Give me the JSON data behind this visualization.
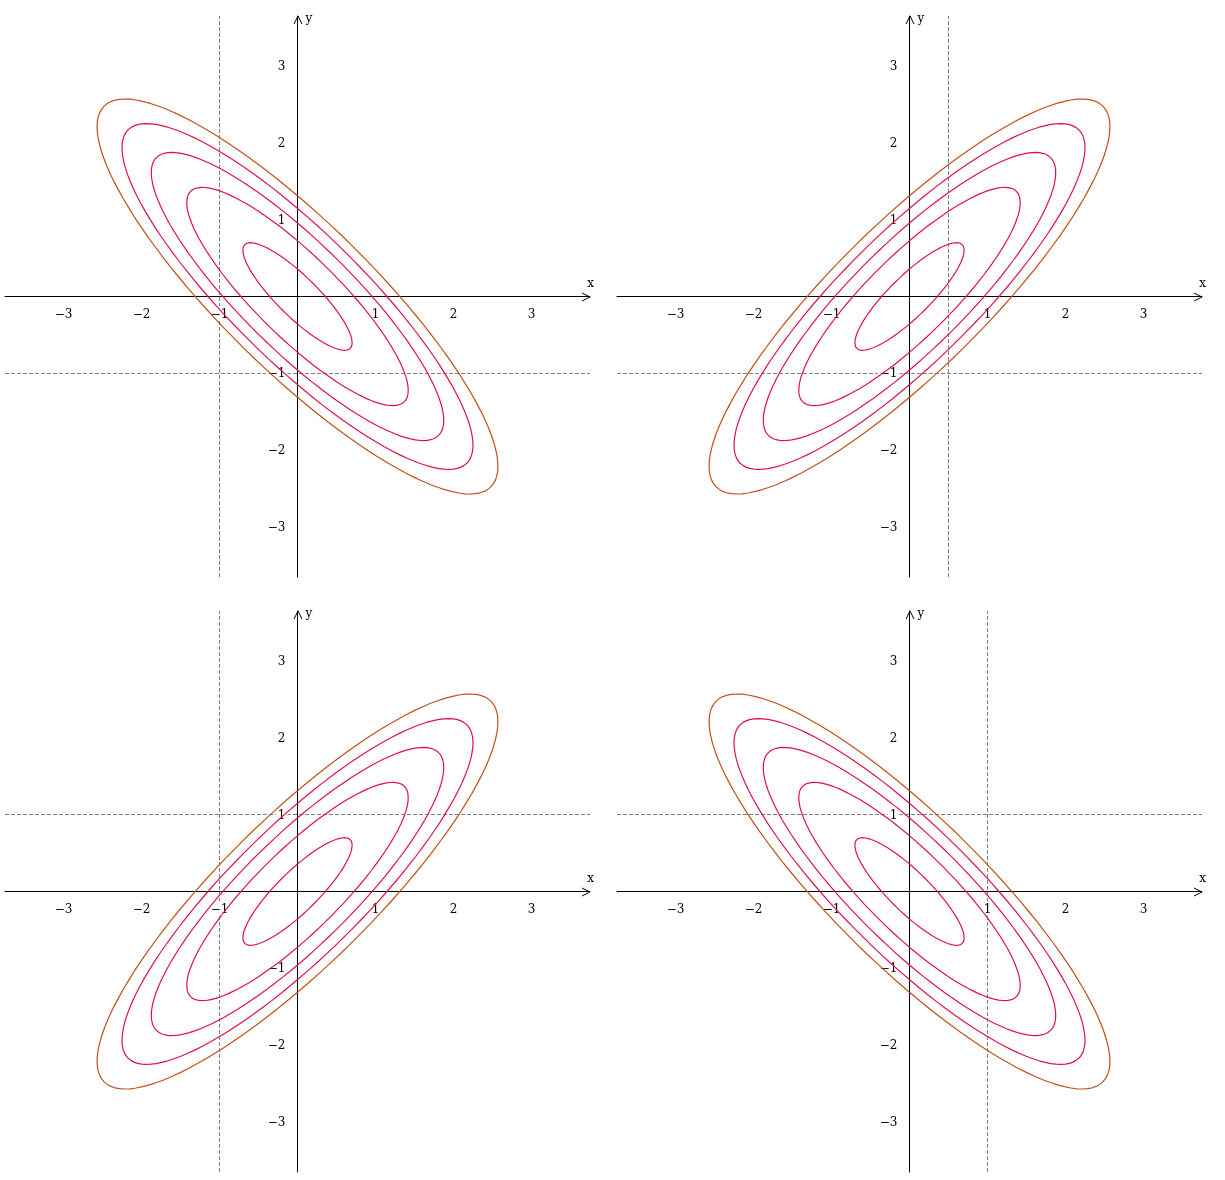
{
  "chart_data": [
    {
      "type": "line",
      "xlabel": "x",
      "ylabel": "y",
      "xlim": [
        -3.75,
        3.75
      ],
      "ylim": [
        -3.65,
        3.65
      ],
      "xticks": [
        {
          "value": -3,
          "label": "−3"
        },
        {
          "value": -2,
          "label": "−2"
        },
        {
          "value": -1,
          "label": "−1"
        },
        1,
        2,
        3
      ],
      "yticks": [
        {
          "value": -3,
          "label": "−3"
        },
        {
          "value": -2,
          "label": "−2"
        },
        {
          "value": -1,
          "label": "−1"
        },
        1,
        2,
        3
      ],
      "grid": false,
      "ref_lines": [
        {
          "axis": "x",
          "value": -1,
          "color": "#808080",
          "line_style": "dashed"
        },
        {
          "axis": "y",
          "value": -1,
          "color": "#808080",
          "line_style": "dashed"
        }
      ]
    },
    {
      "type": "line",
      "xlabel": "x",
      "ylabel": "y",
      "xlim": [
        -3.75,
        3.75
      ],
      "ylim": [
        -3.65,
        3.65
      ],
      "xticks": [
        {
          "value": -3,
          "label": "−3"
        },
        {
          "value": -2,
          "label": "−2"
        },
        {
          "value": -1,
          "label": "−1"
        },
        1,
        2,
        3
      ],
      "yticks": [
        {
          "value": -3,
          "label": "−3"
        },
        {
          "value": -2,
          "label": "−2"
        },
        {
          "value": -1,
          "label": "−1"
        },
        1,
        2,
        3
      ],
      "grid": false,
      "ref_lines": [
        {
          "axis": "x",
          "value": 0.5,
          "color": "#808080",
          "line_style": "dashed"
        },
        {
          "axis": "y",
          "value": -1,
          "color": "#808080",
          "line_style": "dashed"
        }
      ]
    },
    {
      "type": "line",
      "xlabel": "x",
      "ylabel": "y",
      "xlim": [
        -3.75,
        3.75
      ],
      "ylim": [
        -3.65,
        3.65
      ],
      "xticks": [
        {
          "value": -3,
          "label": "−3"
        },
        {
          "value": -2,
          "label": "−2"
        },
        {
          "value": -1,
          "label": "−1"
        },
        1,
        2,
        3
      ],
      "yticks": [
        {
          "value": -3,
          "label": "−3"
        },
        {
          "value": -2,
          "label": "−2"
        },
        {
          "value": -1,
          "label": "−1"
        },
        1,
        2,
        3
      ],
      "grid": false,
      "ref_lines": [
        {
          "axis": "x",
          "value": -1,
          "color": "#808080",
          "line_style": "dashed"
        },
        {
          "axis": "y",
          "value": 1,
          "color": "#808080",
          "line_style": "dashed"
        }
      ]
    },
    {
      "type": "line",
      "xlabel": "x",
      "ylabel": "y",
      "xlim": [
        -3.75,
        3.75
      ],
      "ylim": [
        -3.65,
        3.65
      ],
      "xticks": [
        {
          "value": -3,
          "label": "−3"
        },
        {
          "value": -2,
          "label": "−2"
        },
        {
          "value": -1,
          "label": "−1"
        },
        1,
        2,
        3
      ],
      "yticks": [
        {
          "value": -3,
          "label": "−3"
        },
        {
          "value": -2,
          "label": "−2"
        },
        {
          "value": -1,
          "label": "−1"
        },
        1,
        2,
        3
      ],
      "grid": false,
      "ref_lines": [
        {
          "axis": "x",
          "value": 1,
          "color": "#808080",
          "line_style": "dashed"
        },
        {
          "axis": "y",
          "value": 1,
          "color": "#808080",
          "line_style": "dashed"
        }
      ]
    }
  ]
}
